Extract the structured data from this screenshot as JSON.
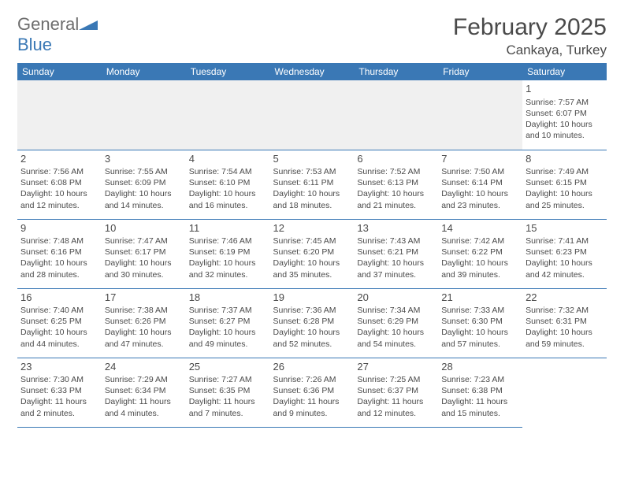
{
  "logo": {
    "text1": "General",
    "text2": "Blue"
  },
  "title": "February 2025",
  "location": "Cankaya, Turkey",
  "colors": {
    "header_bg": "#3a78b5",
    "header_fg": "#ffffff",
    "text": "#4a4a4a",
    "grid_border": "#3a78b5",
    "alt_row": "#f0f0f0",
    "logo_gray": "#6d6d6d",
    "logo_blue": "#3a78b5"
  },
  "fonts": {
    "title_size_pt": 22,
    "location_size_pt": 13,
    "dayheader_size_pt": 9,
    "daynum_size_pt": 10,
    "body_size_pt": 8
  },
  "layout": {
    "cols": 7,
    "rows": 5,
    "first_day_col": 6
  },
  "day_headers": [
    "Sunday",
    "Monday",
    "Tuesday",
    "Wednesday",
    "Thursday",
    "Friday",
    "Saturday"
  ],
  "days": [
    {
      "n": 1,
      "sunrise": "7:57 AM",
      "sunset": "6:07 PM",
      "daylight": "10 hours and 10 minutes."
    },
    {
      "n": 2,
      "sunrise": "7:56 AM",
      "sunset": "6:08 PM",
      "daylight": "10 hours and 12 minutes."
    },
    {
      "n": 3,
      "sunrise": "7:55 AM",
      "sunset": "6:09 PM",
      "daylight": "10 hours and 14 minutes."
    },
    {
      "n": 4,
      "sunrise": "7:54 AM",
      "sunset": "6:10 PM",
      "daylight": "10 hours and 16 minutes."
    },
    {
      "n": 5,
      "sunrise": "7:53 AM",
      "sunset": "6:11 PM",
      "daylight": "10 hours and 18 minutes."
    },
    {
      "n": 6,
      "sunrise": "7:52 AM",
      "sunset": "6:13 PM",
      "daylight": "10 hours and 21 minutes."
    },
    {
      "n": 7,
      "sunrise": "7:50 AM",
      "sunset": "6:14 PM",
      "daylight": "10 hours and 23 minutes."
    },
    {
      "n": 8,
      "sunrise": "7:49 AM",
      "sunset": "6:15 PM",
      "daylight": "10 hours and 25 minutes."
    },
    {
      "n": 9,
      "sunrise": "7:48 AM",
      "sunset": "6:16 PM",
      "daylight": "10 hours and 28 minutes."
    },
    {
      "n": 10,
      "sunrise": "7:47 AM",
      "sunset": "6:17 PM",
      "daylight": "10 hours and 30 minutes."
    },
    {
      "n": 11,
      "sunrise": "7:46 AM",
      "sunset": "6:19 PM",
      "daylight": "10 hours and 32 minutes."
    },
    {
      "n": 12,
      "sunrise": "7:45 AM",
      "sunset": "6:20 PM",
      "daylight": "10 hours and 35 minutes."
    },
    {
      "n": 13,
      "sunrise": "7:43 AM",
      "sunset": "6:21 PM",
      "daylight": "10 hours and 37 minutes."
    },
    {
      "n": 14,
      "sunrise": "7:42 AM",
      "sunset": "6:22 PM",
      "daylight": "10 hours and 39 minutes."
    },
    {
      "n": 15,
      "sunrise": "7:41 AM",
      "sunset": "6:23 PM",
      "daylight": "10 hours and 42 minutes."
    },
    {
      "n": 16,
      "sunrise": "7:40 AM",
      "sunset": "6:25 PM",
      "daylight": "10 hours and 44 minutes."
    },
    {
      "n": 17,
      "sunrise": "7:38 AM",
      "sunset": "6:26 PM",
      "daylight": "10 hours and 47 minutes."
    },
    {
      "n": 18,
      "sunrise": "7:37 AM",
      "sunset": "6:27 PM",
      "daylight": "10 hours and 49 minutes."
    },
    {
      "n": 19,
      "sunrise": "7:36 AM",
      "sunset": "6:28 PM",
      "daylight": "10 hours and 52 minutes."
    },
    {
      "n": 20,
      "sunrise": "7:34 AM",
      "sunset": "6:29 PM",
      "daylight": "10 hours and 54 minutes."
    },
    {
      "n": 21,
      "sunrise": "7:33 AM",
      "sunset": "6:30 PM",
      "daylight": "10 hours and 57 minutes."
    },
    {
      "n": 22,
      "sunrise": "7:32 AM",
      "sunset": "6:31 PM",
      "daylight": "10 hours and 59 minutes."
    },
    {
      "n": 23,
      "sunrise": "7:30 AM",
      "sunset": "6:33 PM",
      "daylight": "11 hours and 2 minutes."
    },
    {
      "n": 24,
      "sunrise": "7:29 AM",
      "sunset": "6:34 PM",
      "daylight": "11 hours and 4 minutes."
    },
    {
      "n": 25,
      "sunrise": "7:27 AM",
      "sunset": "6:35 PM",
      "daylight": "11 hours and 7 minutes."
    },
    {
      "n": 26,
      "sunrise": "7:26 AM",
      "sunset": "6:36 PM",
      "daylight": "11 hours and 9 minutes."
    },
    {
      "n": 27,
      "sunrise": "7:25 AM",
      "sunset": "6:37 PM",
      "daylight": "11 hours and 12 minutes."
    },
    {
      "n": 28,
      "sunrise": "7:23 AM",
      "sunset": "6:38 PM",
      "daylight": "11 hours and 15 minutes."
    }
  ],
  "labels": {
    "sunrise": "Sunrise:",
    "sunset": "Sunset:",
    "daylight": "Daylight:"
  }
}
